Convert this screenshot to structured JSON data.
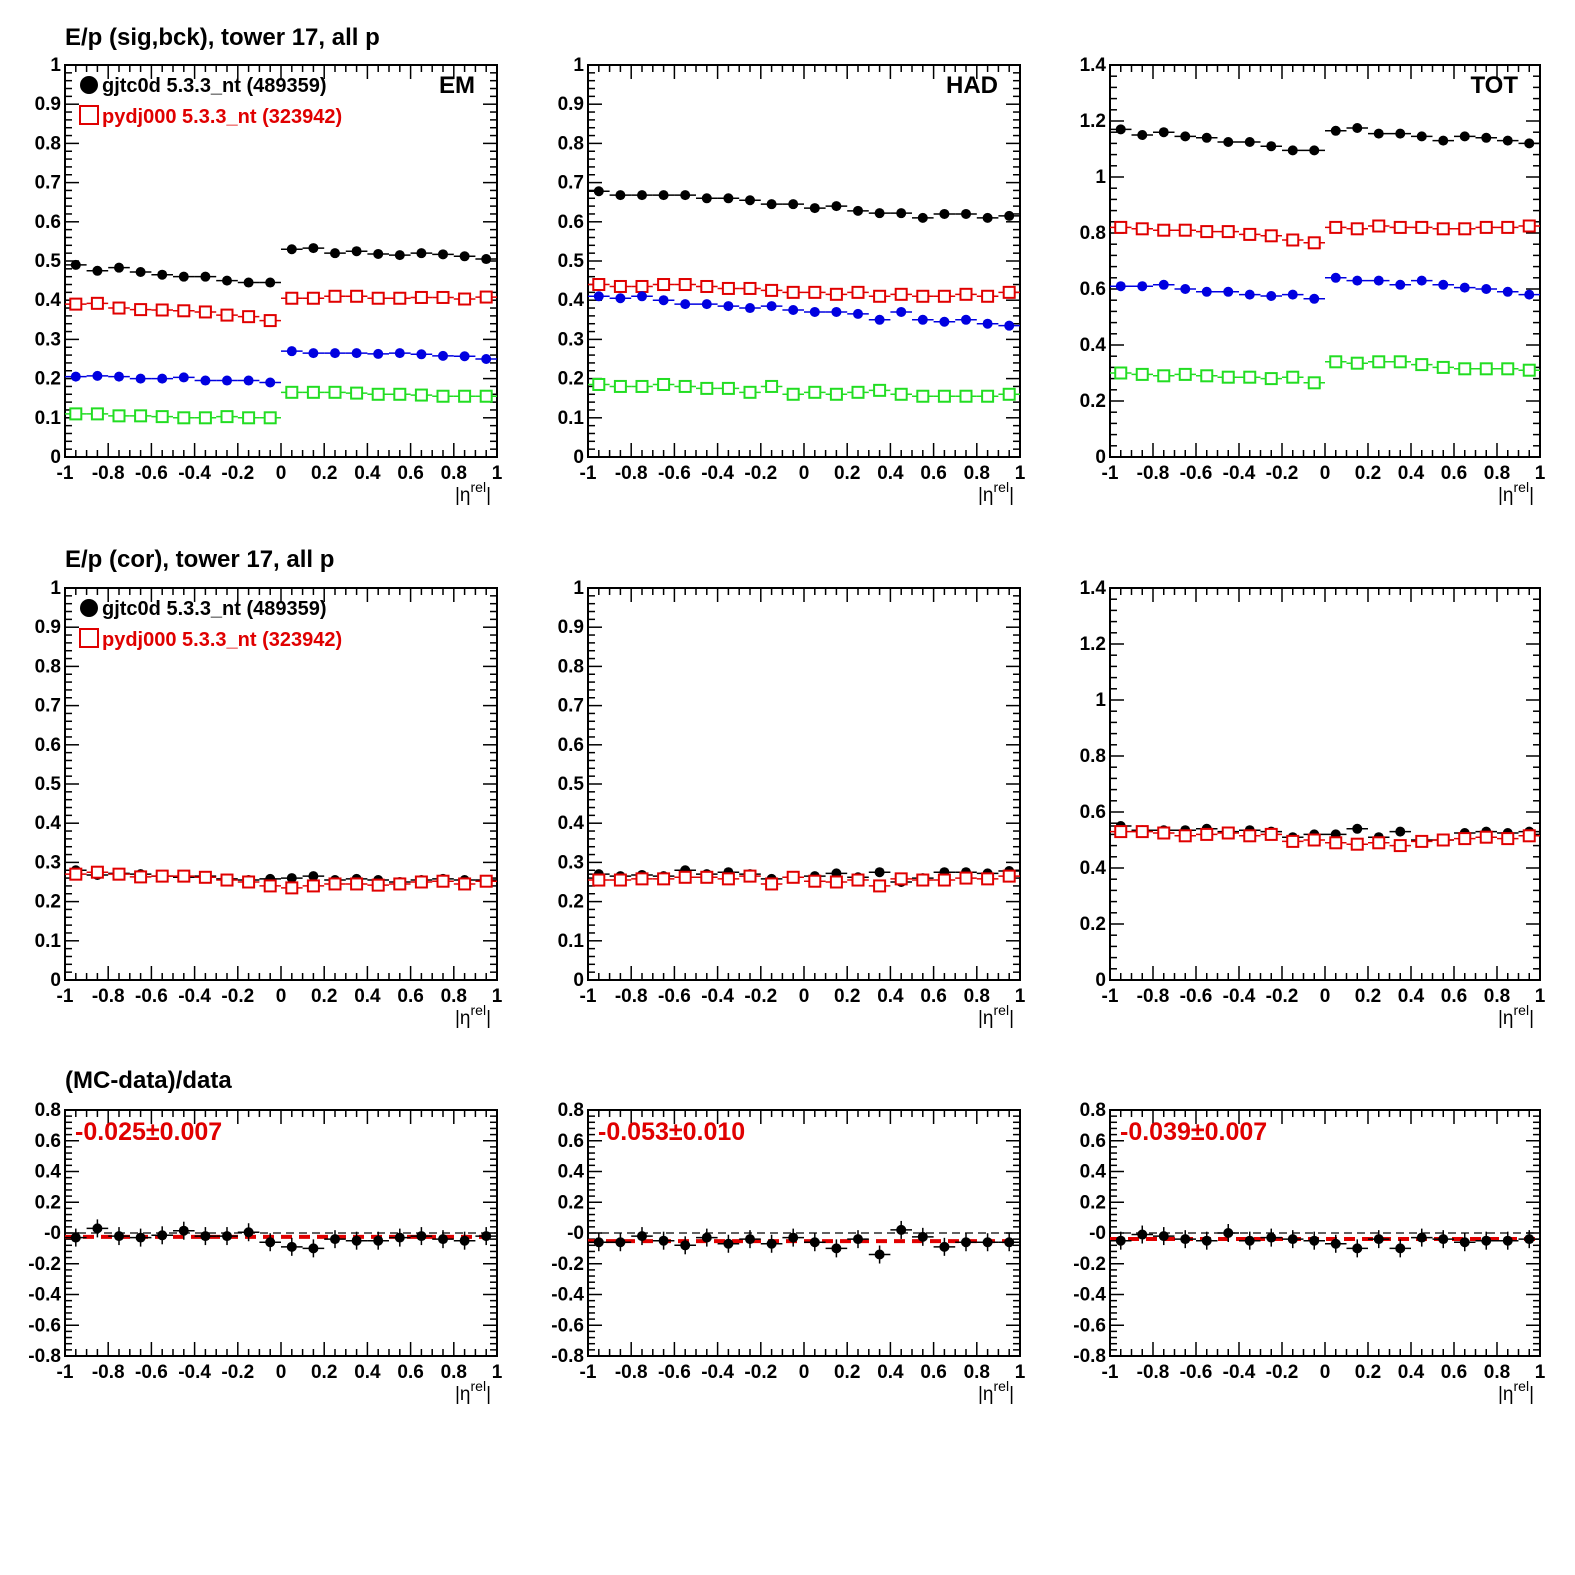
{
  "row_titles": [
    "E/p (sig,bck), tower 17, all p",
    "E/p (cor), tower 17, all p",
    "(MC-data)/data"
  ],
  "panel_labels": [
    "EM",
    "HAD",
    "TOT"
  ],
  "legend": {
    "data": "gjtc0d 5.3.3_nt (489359)",
    "mc": "pydj000 5.3.3_nt (323942)"
  },
  "xaxis": {
    "symbol": "η",
    "superscript": "rel",
    "ticks": [
      "-1",
      "-0.8",
      "-0.6",
      "-0.4",
      "-0.2",
      "0",
      "0.2",
      "0.4",
      "0.6",
      "0.8",
      "1"
    ]
  },
  "colors": {
    "data": "#000000",
    "mc": "#e00000",
    "data_bck": "#0000e0",
    "mc_bck": "#22dd22",
    "fit": "#e00000"
  },
  "chart_data": [
    {
      "type": "scatter",
      "row": 0,
      "col": 0,
      "label": "EM",
      "title": "E/p (sig,bck), tower 17, all p",
      "xlim": [
        -1,
        1
      ],
      "ylim": [
        0,
        1
      ],
      "yticks": [
        "0",
        "0.1",
        "0.2",
        "0.3",
        "0.4",
        "0.5",
        "0.6",
        "0.7",
        "0.8",
        "0.9",
        "1"
      ],
      "x": [
        -0.95,
        -0.85,
        -0.75,
        -0.65,
        -0.55,
        -0.45,
        -0.35,
        -0.25,
        -0.15,
        -0.05,
        0.05,
        0.15,
        0.25,
        0.35,
        0.45,
        0.55,
        0.65,
        0.75,
        0.85,
        0.95
      ],
      "series": [
        {
          "style": "data",
          "values": [
            0.49,
            0.475,
            0.483,
            0.472,
            0.465,
            0.46,
            0.46,
            0.45,
            0.445,
            0.445,
            0.53,
            0.533,
            0.52,
            0.525,
            0.518,
            0.515,
            0.52,
            0.517,
            0.512,
            0.505
          ]
        },
        {
          "style": "mc",
          "values": [
            0.39,
            0.392,
            0.38,
            0.376,
            0.375,
            0.373,
            0.37,
            0.362,
            0.358,
            0.348,
            0.405,
            0.405,
            0.41,
            0.41,
            0.405,
            0.405,
            0.407,
            0.407,
            0.403,
            0.408
          ]
        },
        {
          "style": "data_bck",
          "values": [
            0.205,
            0.207,
            0.205,
            0.2,
            0.2,
            0.203,
            0.195,
            0.195,
            0.195,
            0.19,
            0.27,
            0.265,
            0.265,
            0.265,
            0.263,
            0.265,
            0.262,
            0.258,
            0.257,
            0.25
          ]
        },
        {
          "style": "mc_bck",
          "values": [
            0.11,
            0.11,
            0.105,
            0.105,
            0.103,
            0.1,
            0.1,
            0.103,
            0.1,
            0.1,
            0.165,
            0.165,
            0.165,
            0.163,
            0.16,
            0.16,
            0.158,
            0.155,
            0.155,
            0.155
          ]
        }
      ]
    },
    {
      "type": "scatter",
      "row": 0,
      "col": 1,
      "label": "HAD",
      "xlim": [
        -1,
        1
      ],
      "ylim": [
        0,
        1
      ],
      "yticks": [
        "0",
        "0.1",
        "0.2",
        "0.3",
        "0.4",
        "0.5",
        "0.6",
        "0.7",
        "0.8",
        "0.9",
        "1"
      ],
      "x": [
        -0.95,
        -0.85,
        -0.75,
        -0.65,
        -0.55,
        -0.45,
        -0.35,
        -0.25,
        -0.15,
        -0.05,
        0.05,
        0.15,
        0.25,
        0.35,
        0.45,
        0.55,
        0.65,
        0.75,
        0.85,
        0.95
      ],
      "series": [
        {
          "style": "data",
          "values": [
            0.678,
            0.668,
            0.668,
            0.668,
            0.668,
            0.66,
            0.66,
            0.655,
            0.645,
            0.645,
            0.635,
            0.64,
            0.628,
            0.622,
            0.622,
            0.61,
            0.62,
            0.62,
            0.61,
            0.615
          ]
        },
        {
          "style": "mc",
          "values": [
            0.44,
            0.435,
            0.435,
            0.44,
            0.44,
            0.435,
            0.43,
            0.43,
            0.425,
            0.42,
            0.42,
            0.415,
            0.42,
            0.41,
            0.415,
            0.41,
            0.41,
            0.415,
            0.41,
            0.42
          ]
        },
        {
          "style": "data_bck",
          "values": [
            0.41,
            0.405,
            0.41,
            0.4,
            0.39,
            0.39,
            0.385,
            0.38,
            0.385,
            0.375,
            0.37,
            0.37,
            0.365,
            0.35,
            0.37,
            0.35,
            0.345,
            0.35,
            0.34,
            0.335
          ]
        },
        {
          "style": "mc_bck",
          "values": [
            0.185,
            0.18,
            0.18,
            0.185,
            0.18,
            0.175,
            0.175,
            0.165,
            0.18,
            0.16,
            0.165,
            0.16,
            0.165,
            0.17,
            0.16,
            0.155,
            0.155,
            0.155,
            0.155,
            0.16
          ]
        }
      ]
    },
    {
      "type": "scatter",
      "row": 0,
      "col": 2,
      "label": "TOT",
      "xlim": [
        -1,
        1
      ],
      "ylim": [
        0,
        1.4
      ],
      "yticks": [
        "0",
        "0.2",
        "0.4",
        "0.6",
        "0.8",
        "1",
        "1.2",
        "1.4"
      ],
      "x": [
        -0.95,
        -0.85,
        -0.75,
        -0.65,
        -0.55,
        -0.45,
        -0.35,
        -0.25,
        -0.15,
        -0.05,
        0.05,
        0.15,
        0.25,
        0.35,
        0.45,
        0.55,
        0.65,
        0.75,
        0.85,
        0.95
      ],
      "series": [
        {
          "style": "data",
          "values": [
            1.17,
            1.15,
            1.16,
            1.145,
            1.14,
            1.125,
            1.125,
            1.11,
            1.095,
            1.095,
            1.165,
            1.175,
            1.155,
            1.155,
            1.145,
            1.13,
            1.145,
            1.14,
            1.13,
            1.12
          ]
        },
        {
          "style": "mc",
          "values": [
            0.82,
            0.815,
            0.81,
            0.81,
            0.805,
            0.805,
            0.795,
            0.79,
            0.775,
            0.765,
            0.82,
            0.815,
            0.825,
            0.82,
            0.82,
            0.815,
            0.815,
            0.82,
            0.82,
            0.825
          ]
        },
        {
          "style": "data_bck",
          "values": [
            0.61,
            0.61,
            0.615,
            0.6,
            0.59,
            0.59,
            0.58,
            0.575,
            0.58,
            0.565,
            0.64,
            0.63,
            0.63,
            0.615,
            0.63,
            0.615,
            0.605,
            0.6,
            0.59,
            0.58
          ]
        },
        {
          "style": "mc_bck",
          "values": [
            0.3,
            0.295,
            0.29,
            0.295,
            0.29,
            0.285,
            0.285,
            0.28,
            0.285,
            0.265,
            0.34,
            0.335,
            0.34,
            0.34,
            0.33,
            0.32,
            0.315,
            0.315,
            0.315,
            0.31
          ]
        }
      ]
    },
    {
      "type": "scatter",
      "row": 1,
      "col": 0,
      "title": "E/p (cor), tower 17, all p",
      "xlim": [
        -1,
        1
      ],
      "ylim": [
        0,
        1
      ],
      "yticks": [
        "0",
        "0.1",
        "0.2",
        "0.3",
        "0.4",
        "0.5",
        "0.6",
        "0.7",
        "0.8",
        "0.9",
        "1"
      ],
      "x": [
        -0.95,
        -0.85,
        -0.75,
        -0.65,
        -0.55,
        -0.45,
        -0.35,
        -0.25,
        -0.15,
        -0.05,
        0.05,
        0.15,
        0.25,
        0.35,
        0.45,
        0.55,
        0.65,
        0.75,
        0.85,
        0.95
      ],
      "series": [
        {
          "style": "data",
          "values": [
            0.28,
            0.268,
            0.272,
            0.27,
            0.265,
            0.262,
            0.265,
            0.258,
            0.255,
            0.258,
            0.26,
            0.265,
            0.255,
            0.258,
            0.255,
            0.25,
            0.255,
            0.258,
            0.255,
            0.255
          ]
        },
        {
          "style": "mc",
          "values": [
            0.27,
            0.275,
            0.27,
            0.263,
            0.265,
            0.265,
            0.262,
            0.255,
            0.25,
            0.24,
            0.235,
            0.24,
            0.245,
            0.245,
            0.242,
            0.245,
            0.25,
            0.252,
            0.245,
            0.252
          ]
        }
      ]
    },
    {
      "type": "scatter",
      "row": 1,
      "col": 1,
      "xlim": [
        -1,
        1
      ],
      "ylim": [
        0,
        1
      ],
      "yticks": [
        "0",
        "0.1",
        "0.2",
        "0.3",
        "0.4",
        "0.5",
        "0.6",
        "0.7",
        "0.8",
        "0.9",
        "1"
      ],
      "x": [
        -0.95,
        -0.85,
        -0.75,
        -0.65,
        -0.55,
        -0.45,
        -0.35,
        -0.25,
        -0.15,
        -0.05,
        0.05,
        0.15,
        0.25,
        0.35,
        0.45,
        0.55,
        0.65,
        0.75,
        0.85,
        0.95
      ],
      "series": [
        {
          "style": "data",
          "values": [
            0.27,
            0.265,
            0.268,
            0.265,
            0.28,
            0.27,
            0.275,
            0.27,
            0.258,
            0.262,
            0.265,
            0.272,
            0.262,
            0.275,
            0.25,
            0.26,
            0.275,
            0.275,
            0.272,
            0.278
          ]
        },
        {
          "style": "mc",
          "values": [
            0.255,
            0.255,
            0.258,
            0.258,
            0.262,
            0.262,
            0.258,
            0.265,
            0.245,
            0.262,
            0.252,
            0.25,
            0.255,
            0.24,
            0.258,
            0.255,
            0.255,
            0.26,
            0.258,
            0.265
          ]
        }
      ]
    },
    {
      "type": "scatter",
      "row": 1,
      "col": 2,
      "xlim": [
        -1,
        1
      ],
      "ylim": [
        0,
        1.4
      ],
      "yticks": [
        "0",
        "0.2",
        "0.4",
        "0.6",
        "0.8",
        "1",
        "1.2",
        "1.4"
      ],
      "x": [
        -0.95,
        -0.85,
        -0.75,
        -0.65,
        -0.55,
        -0.45,
        -0.35,
        -0.25,
        -0.15,
        -0.05,
        0.05,
        0.15,
        0.25,
        0.35,
        0.45,
        0.55,
        0.65,
        0.75,
        0.85,
        0.95
      ],
      "series": [
        {
          "style": "data",
          "values": [
            0.55,
            0.535,
            0.535,
            0.535,
            0.54,
            0.53,
            0.535,
            0.53,
            0.51,
            0.52,
            0.52,
            0.54,
            0.51,
            0.53,
            0.5,
            0.5,
            0.525,
            0.53,
            0.525,
            0.53
          ]
        },
        {
          "style": "mc",
          "values": [
            0.53,
            0.53,
            0.525,
            0.515,
            0.52,
            0.525,
            0.515,
            0.52,
            0.495,
            0.5,
            0.49,
            0.485,
            0.49,
            0.48,
            0.495,
            0.5,
            0.505,
            0.51,
            0.505,
            0.515
          ]
        }
      ]
    },
    {
      "type": "scatter",
      "row": 2,
      "col": 0,
      "title": "(MC-data)/data",
      "annotation": "-0.025±0.007",
      "xlim": [
        -1,
        1
      ],
      "ylim": [
        -0.8,
        0.8
      ],
      "yticks": [
        "-0.8",
        "-0.6",
        "-0.4",
        "-0.2",
        "-0",
        "0.2",
        "0.4",
        "0.6",
        "0.8"
      ],
      "x": [
        -0.95,
        -0.85,
        -0.75,
        -0.65,
        -0.55,
        -0.45,
        -0.35,
        -0.25,
        -0.15,
        -0.05,
        0.05,
        0.15,
        0.25,
        0.35,
        0.45,
        0.55,
        0.65,
        0.75,
        0.85,
        0.95
      ],
      "series": [
        {
          "style": "data",
          "values": [
            -0.03,
            0.03,
            -0.02,
            -0.03,
            -0.015,
            0.015,
            -0.02,
            -0.02,
            0.005,
            -0.06,
            -0.09,
            -0.1,
            -0.04,
            -0.05,
            -0.05,
            -0.03,
            -0.02,
            -0.04,
            -0.05,
            -0.02
          ]
        }
      ],
      "fit": -0.025
    },
    {
      "type": "scatter",
      "row": 2,
      "col": 1,
      "annotation": "-0.053±0.010",
      "xlim": [
        -1,
        1
      ],
      "ylim": [
        -0.8,
        0.8
      ],
      "yticks": [
        "-0.8",
        "-0.6",
        "-0.4",
        "-0.2",
        "-0",
        "0.2",
        "0.4",
        "0.6",
        "0.8"
      ],
      "x": [
        -0.95,
        -0.85,
        -0.75,
        -0.65,
        -0.55,
        -0.45,
        -0.35,
        -0.25,
        -0.15,
        -0.05,
        0.05,
        0.15,
        0.25,
        0.35,
        0.45,
        0.55,
        0.65,
        0.75,
        0.85,
        0.95
      ],
      "series": [
        {
          "style": "data",
          "values": [
            -0.06,
            -0.06,
            -0.02,
            -0.05,
            -0.08,
            -0.03,
            -0.07,
            -0.04,
            -0.07,
            -0.03,
            -0.06,
            -0.1,
            -0.04,
            -0.14,
            0.02,
            -0.025,
            -0.09,
            -0.06,
            -0.06,
            -0.06
          ]
        }
      ],
      "fit": -0.053
    },
    {
      "type": "scatter",
      "row": 2,
      "col": 2,
      "annotation": "-0.039±0.007",
      "xlim": [
        -1,
        1
      ],
      "ylim": [
        -0.8,
        0.8
      ],
      "yticks": [
        "-0.8",
        "-0.6",
        "-0.4",
        "-0.2",
        "-0",
        "0.2",
        "0.4",
        "0.6",
        "0.8"
      ],
      "x": [
        -0.95,
        -0.85,
        -0.75,
        -0.65,
        -0.55,
        -0.45,
        -0.35,
        -0.25,
        -0.15,
        -0.05,
        0.05,
        0.15,
        0.25,
        0.35,
        0.45,
        0.55,
        0.65,
        0.75,
        0.85,
        0.95
      ],
      "series": [
        {
          "style": "data",
          "values": [
            -0.05,
            -0.01,
            -0.02,
            -0.04,
            -0.05,
            0.0,
            -0.05,
            -0.03,
            -0.04,
            -0.05,
            -0.07,
            -0.1,
            -0.04,
            -0.1,
            -0.03,
            -0.04,
            -0.06,
            -0.05,
            -0.05,
            -0.04
          ]
        }
      ],
      "fit": -0.039
    }
  ]
}
